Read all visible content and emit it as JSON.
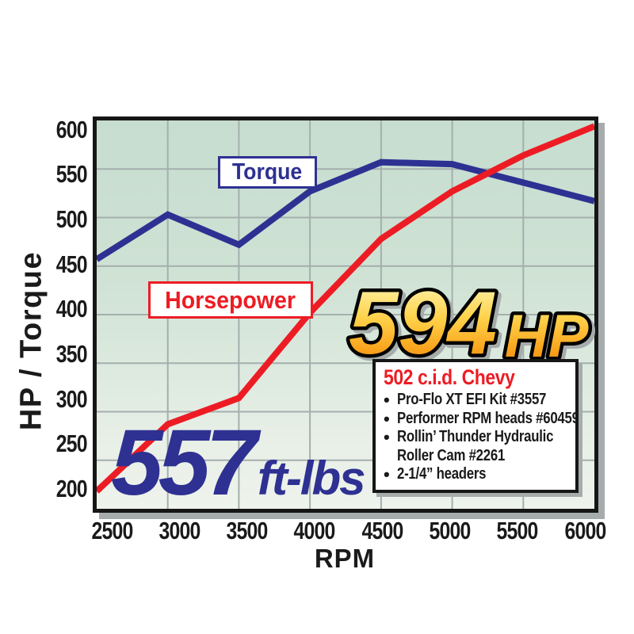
{
  "figure": {
    "background": "#ffffff"
  },
  "chart_data": {
    "type": "line",
    "title": "",
    "xlabel": "RPM",
    "ylabel": "HP / Torque",
    "xlim": [
      2500,
      6000
    ],
    "ylim": [
      200,
      600
    ],
    "grid": true,
    "legend_position": "boxed labels near curves",
    "x_ticks": [
      "2500",
      "3000",
      "3500",
      "4000",
      "4500",
      "5000",
      "5500",
      "6000"
    ],
    "y_ticks": [
      "600",
      "550",
      "500",
      "450",
      "400",
      "350",
      "300",
      "250",
      "200"
    ],
    "x": [
      2500,
      3000,
      3500,
      4000,
      4500,
      5000,
      5500,
      6000
    ],
    "series": [
      {
        "name": "Torque",
        "color": "#2e3192",
        "unit": "ft-lbs",
        "peak": 557,
        "values": [
          457,
          503,
          472,
          527,
          557,
          555,
          536,
          517
        ]
      },
      {
        "name": "Horsepower",
        "color": "#ed1c24",
        "unit": "HP",
        "peak": 594,
        "values": [
          218,
          287,
          314,
          402,
          478,
          527,
          564,
          594
        ]
      }
    ]
  },
  "labels": {
    "torque": "Torque",
    "horsepower": "Horsepower"
  },
  "callouts": {
    "hp_value": "594",
    "hp_unit": "HP",
    "torque_value": "557",
    "torque_unit": "ft-lbs"
  },
  "spec_box": {
    "title": "502 c.i.d. Chevy",
    "items": [
      "Pro-Flo XT EFI Kit #3557",
      "Performer RPM heads #60459",
      "Rollin’ Thunder Hydraulic\nRoller Cam #2261",
      "2-1/4” headers"
    ]
  },
  "colors": {
    "torque_line": "#2e3192",
    "horsepower_line": "#ed1c24",
    "grid": "#a4afad",
    "plot_bg_top": "#c6ddd0",
    "plot_bg_bottom": "#eef3ec",
    "axis_border": "#161616",
    "shadow": "#a6acac",
    "gold_top": "#fff9c0",
    "gold_mid": "#ffd24a",
    "gold_bottom": "#f58220",
    "spec_title": "#ed1c24"
  }
}
